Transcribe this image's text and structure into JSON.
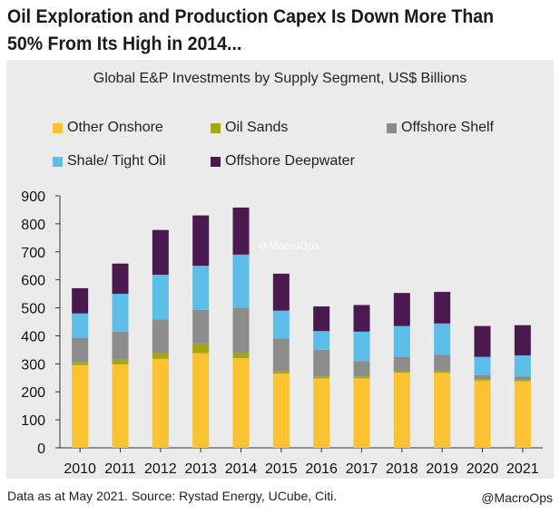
{
  "headline": {
    "line1": "Oil Exploration and Production Capex Is Down More Than",
    "line2": "50% From Its High in 2014..."
  },
  "footer": {
    "source": "Data as at May 2021. Source: Rystad Energy, UCube, Citi.",
    "credit": "@MacroOps"
  },
  "watermark": "@MacroOps",
  "chart_data": {
    "type": "bar",
    "stacked": true,
    "title": "Global E&P Investments by Supply Segment, US$ Billions",
    "xlabel": "",
    "ylabel": "",
    "ylim": [
      0,
      900
    ],
    "yticks": [
      "0",
      "100",
      "200",
      "300",
      "400",
      "500",
      "600",
      "700",
      "800",
      "900"
    ],
    "categories": [
      "2010",
      "2011",
      "2012",
      "2013",
      "2014",
      "2015",
      "2016",
      "2017",
      "2018",
      "2019",
      "2020",
      "2021"
    ],
    "legend_position": "top",
    "series": [
      {
        "name": "Other Onshore",
        "color": "#fbc232",
        "values": [
          295,
          298,
          318,
          338,
          320,
          265,
          248,
          248,
          268,
          268,
          240,
          238
        ]
      },
      {
        "name": "Oil Sands",
        "color": "#a6a615",
        "values": [
          10,
          17,
          20,
          35,
          18,
          10,
          7,
          7,
          7,
          7,
          5,
          5
        ]
      },
      {
        "name": "Offshore Shelf",
        "color": "#8c8c8c",
        "values": [
          88,
          100,
          120,
          120,
          162,
          115,
          95,
          55,
          50,
          57,
          15,
          12
        ]
      },
      {
        "name": "Shale/ Tight Oil",
        "color": "#5bbde8",
        "values": [
          87,
          135,
          160,
          157,
          190,
          100,
          67,
          105,
          110,
          112,
          65,
          75
        ]
      },
      {
        "name": "Offshore Deepwater",
        "color": "#4a1a4f",
        "values": [
          90,
          108,
          160,
          180,
          168,
          132,
          88,
          95,
          118,
          113,
          110,
          108
        ]
      }
    ]
  }
}
